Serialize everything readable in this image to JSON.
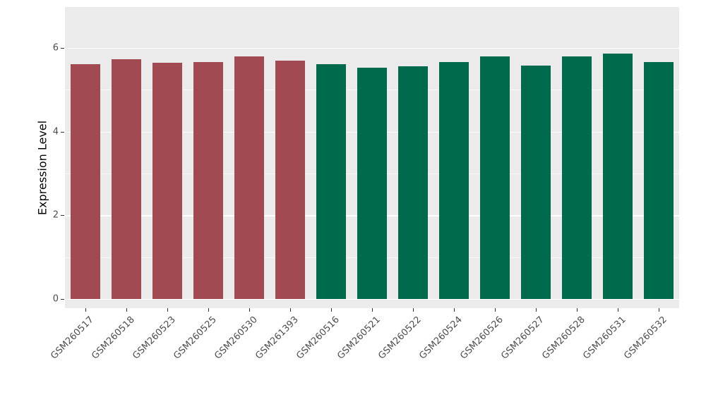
{
  "chart_data": {
    "type": "bar",
    "title": "",
    "xlabel": "",
    "ylabel": "Expression Level",
    "ylim": [
      0,
      6
    ],
    "yticks": [
      0,
      2,
      4,
      6
    ],
    "minor_yticks": [
      1,
      3,
      5
    ],
    "grid": "on",
    "legend": "none",
    "categories": [
      "GSM260517",
      "GSM260518",
      "GSM260523",
      "GSM260525",
      "GSM260530",
      "GSM261393",
      "GSM260516",
      "GSM260521",
      "GSM260522",
      "GSM260524",
      "GSM260526",
      "GSM260527",
      "GSM260528",
      "GSM260531",
      "GSM260532"
    ],
    "values": [
      5.62,
      5.73,
      5.64,
      5.66,
      5.79,
      5.7,
      5.61,
      5.52,
      5.56,
      5.67,
      5.8,
      5.58,
      5.8,
      5.86,
      5.67
    ],
    "bar_colors": [
      "#A14A52",
      "#A14A52",
      "#A14A52",
      "#A14A52",
      "#A14A52",
      "#A14A52",
      "#006B4C",
      "#006B4C",
      "#006B4C",
      "#006B4C",
      "#006B4C",
      "#006B4C",
      "#006B4C",
      "#006B4C",
      "#006B4C"
    ],
    "panel_background": "#EBEBEB",
    "gridline_color": "#FFFFFF",
    "tick_label_color": "#4D4D4D",
    "axis_title_color": "#000000"
  }
}
